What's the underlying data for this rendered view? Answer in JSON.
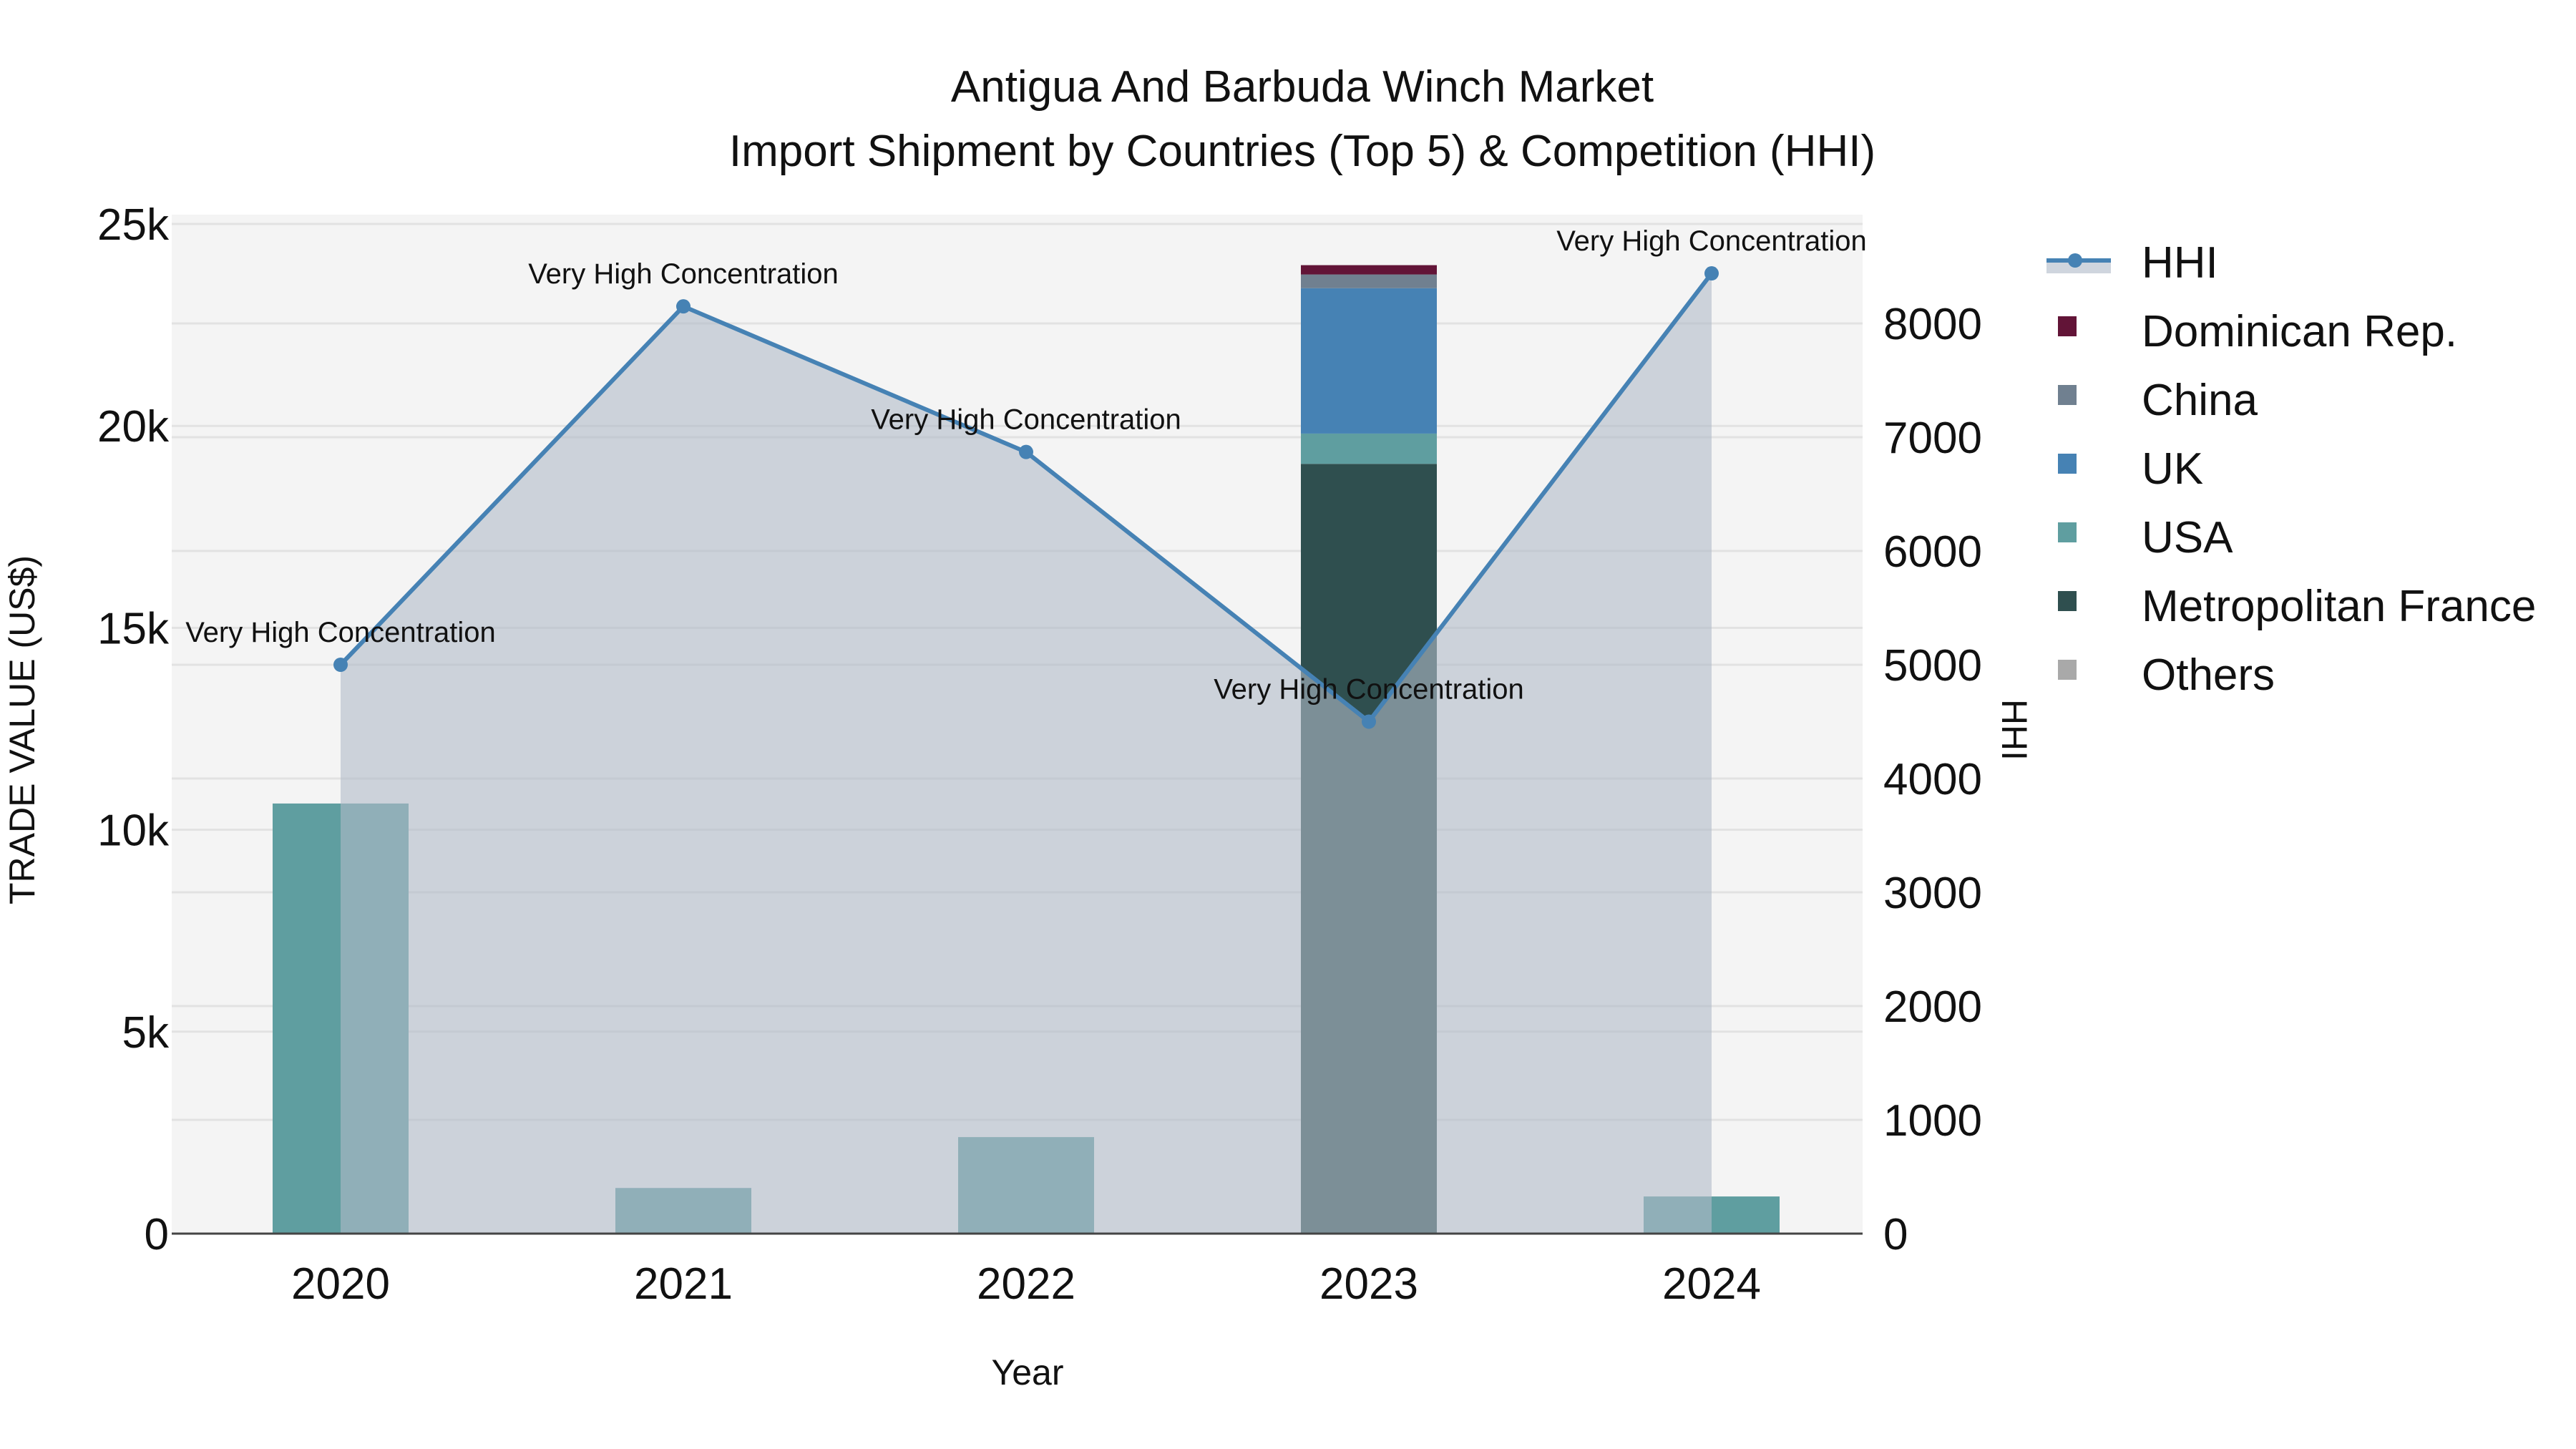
{
  "title": {
    "line1": "Antigua And Barbuda Winch Market",
    "line2": "Import Shipment by Countries (Top 5) & Competition (HHI)"
  },
  "axes": {
    "x_label": "Year",
    "y_left_label": "TRADE VALUE (US$)",
    "y_right_label": "HHI",
    "y_left_ticks": [
      "0",
      "5k",
      "10k",
      "15k",
      "20k",
      "25k"
    ],
    "y_right_ticks": [
      "0",
      "1000",
      "2000",
      "3000",
      "4000",
      "5000",
      "6000",
      "7000",
      "8000"
    ]
  },
  "legend": {
    "items": [
      {
        "label": "HHI",
        "type": "line",
        "color": "#4682b4"
      },
      {
        "label": "Dominican Rep.",
        "type": "bar",
        "color": "#621437"
      },
      {
        "label": "China",
        "type": "bar",
        "color": "#708090"
      },
      {
        "label": "UK",
        "type": "bar",
        "color": "#4682b4"
      },
      {
        "label": "USA",
        "type": "bar",
        "color": "#5f9ea0"
      },
      {
        "label": "Metropolitan France",
        "type": "bar",
        "color": "#2f4f4f"
      },
      {
        "label": "Others",
        "type": "bar",
        "color": "#a9a9a9"
      }
    ]
  },
  "annotations": [
    "Very High Concentration",
    "Very High Concentration",
    "Very High Concentration",
    "Very High Concentration",
    "Very High Concentration"
  ],
  "colors": {
    "plot_bg": "#f4f4f4",
    "grid": "#e2e2e2",
    "hhi_line": "#4682b4",
    "hhi_fill": "rgba(176,186,200,0.6)"
  },
  "chart_data": {
    "type": "bar",
    "title": "Antigua And Barbuda Winch Market — Import Shipment by Countries (Top 5) & Competition (HHI)",
    "xlabel": "Year",
    "ylabel": "TRADE VALUE (US$)",
    "y2label": "HHI",
    "ylim": [
      0,
      25500
    ],
    "y2lim": [
      0,
      8950
    ],
    "categories": [
      "2020",
      "2021",
      "2022",
      "2023",
      "2024"
    ],
    "stacked": true,
    "series": [
      {
        "name": "Metropolitan France",
        "color": "#2f4f4f",
        "values": [
          0,
          0,
          0,
          19060,
          0
        ]
      },
      {
        "name": "USA",
        "color": "#5f9ea0",
        "values": [
          10650,
          1130,
          2390,
          750,
          920
        ]
      },
      {
        "name": "UK",
        "color": "#4682b4",
        "values": [
          0,
          0,
          0,
          3600,
          0
        ]
      },
      {
        "name": "China",
        "color": "#708090",
        "values": [
          0,
          0,
          0,
          340,
          0
        ]
      },
      {
        "name": "Dominican Rep.",
        "color": "#621437",
        "values": [
          0,
          0,
          0,
          230,
          0
        ]
      },
      {
        "name": "Others",
        "color": "#a9a9a9",
        "values": [
          0,
          0,
          0,
          0,
          0
        ]
      }
    ],
    "line_series": {
      "name": "HHI",
      "axis": "right",
      "type": "line+area",
      "values": [
        5000,
        8150,
        6870,
        4500,
        8440
      ],
      "labels": [
        "Very High Concentration",
        "Very High Concentration",
        "Very High Concentration",
        "Very High Concentration",
        "Very High Concentration"
      ]
    },
    "legend_position": "right",
    "grid": true
  }
}
